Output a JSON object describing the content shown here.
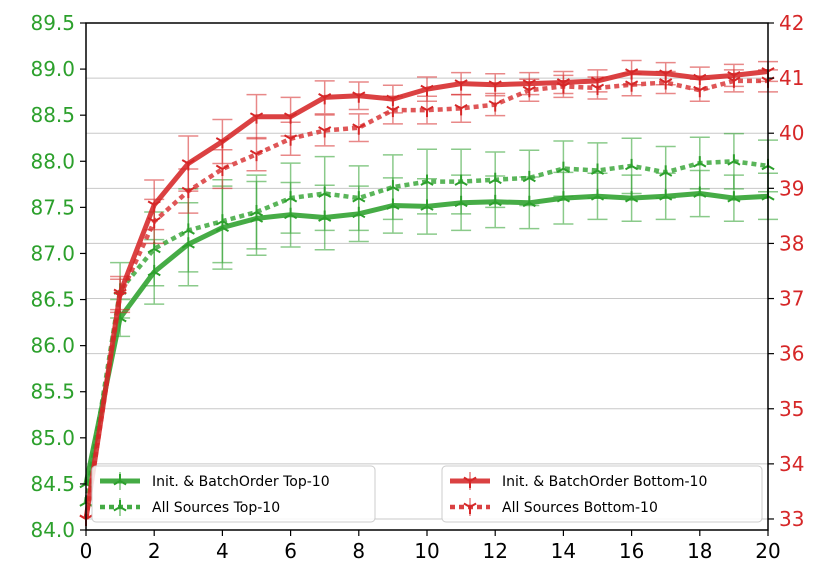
{
  "chart_data": {
    "type": "line",
    "x": [
      0,
      1,
      2,
      3,
      4,
      5,
      6,
      7,
      8,
      9,
      10,
      11,
      12,
      13,
      14,
      15,
      16,
      17,
      18,
      19,
      20
    ],
    "xlim": [
      0,
      20
    ],
    "x_ticks": [
      0,
      2,
      4,
      6,
      8,
      10,
      12,
      14,
      16,
      18,
      20
    ],
    "y_left": {
      "lim": [
        84.0,
        89.5
      ],
      "ticks": [
        84.0,
        84.5,
        85.0,
        85.5,
        86.0,
        86.5,
        87.0,
        87.5,
        88.0,
        88.5,
        89.0,
        89.5
      ],
      "tick_labels": [
        "84.0",
        "84.5",
        "85.0",
        "85.5",
        "86.0",
        "86.5",
        "87.0",
        "87.5",
        "88.0",
        "88.5",
        "89.0",
        "89.5"
      ],
      "color": "#2ca02c"
    },
    "y_right": {
      "lim": [
        32.8,
        42.0
      ],
      "ticks": [
        33,
        34,
        35,
        36,
        37,
        38,
        39,
        40,
        41,
        42
      ],
      "tick_labels": [
        "33",
        "34",
        "35",
        "36",
        "37",
        "38",
        "39",
        "40",
        "41",
        "42"
      ],
      "color": "#d62728"
    },
    "grid": "horizontal",
    "legend_left": "bottom-left",
    "legend_right": "bottom-right",
    "series": [
      {
        "name": "Init. & BatchOrder Top-10",
        "axis": "left",
        "color": "#2ca02c",
        "style": "solid",
        "values": [
          84.5,
          86.3,
          86.8,
          87.1,
          87.28,
          87.38,
          87.42,
          87.39,
          87.43,
          87.52,
          87.51,
          87.55,
          87.56,
          87.55,
          87.6,
          87.62,
          87.6,
          87.62,
          87.65,
          87.6,
          87.62
        ],
        "errors": [
          0.0,
          0.2,
          0.35,
          0.45,
          0.45,
          0.4,
          0.35,
          0.35,
          0.3,
          0.3,
          0.3,
          0.3,
          0.28,
          0.28,
          0.28,
          0.25,
          0.25,
          0.25,
          0.25,
          0.25,
          0.25
        ]
      },
      {
        "name": "All Sources Top-10",
        "axis": "left",
        "color": "#2ca02c",
        "style": "dotted",
        "values": [
          84.3,
          86.6,
          87.05,
          87.25,
          87.35,
          87.45,
          87.6,
          87.65,
          87.6,
          87.72,
          87.78,
          87.78,
          87.8,
          87.82,
          87.92,
          87.9,
          87.95,
          87.88,
          87.98,
          88.0,
          87.95
        ],
        "errors": [
          0.0,
          0.3,
          0.4,
          0.45,
          0.45,
          0.4,
          0.38,
          0.4,
          0.35,
          0.35,
          0.35,
          0.35,
          0.3,
          0.3,
          0.3,
          0.3,
          0.3,
          0.28,
          0.28,
          0.3,
          0.28
        ]
      },
      {
        "name": "Init. & BatchOrder Bottom-10",
        "axis": "right",
        "color": "#d62728",
        "style": "solid",
        "values": [
          33.0,
          37.1,
          38.7,
          39.45,
          39.85,
          40.3,
          40.3,
          40.65,
          40.68,
          40.62,
          40.8,
          40.9,
          40.88,
          40.9,
          40.92,
          40.95,
          41.1,
          41.08,
          41.0,
          41.05,
          41.12
        ],
        "errors": [
          0.0,
          0.3,
          0.45,
          0.5,
          0.4,
          0.4,
          0.35,
          0.3,
          0.25,
          0.25,
          0.22,
          0.2,
          0.2,
          0.2,
          0.2,
          0.2,
          0.22,
          0.2,
          0.2,
          0.2,
          0.18
        ]
      },
      {
        "name": "All Sources Bottom-10",
        "axis": "right",
        "color": "#d62728",
        "style": "dotted",
        "values": [
          33.0,
          37.05,
          38.4,
          38.95,
          39.35,
          39.62,
          39.9,
          40.05,
          40.1,
          40.42,
          40.42,
          40.45,
          40.52,
          40.78,
          40.85,
          40.82,
          40.88,
          40.92,
          40.78,
          40.95,
          40.95
        ],
        "errors": [
          0.0,
          0.3,
          0.4,
          0.4,
          0.35,
          0.3,
          0.3,
          0.28,
          0.25,
          0.25,
          0.25,
          0.25,
          0.2,
          0.2,
          0.2,
          0.2,
          0.2,
          0.2,
          0.2,
          0.2,
          0.2
        ]
      }
    ]
  }
}
